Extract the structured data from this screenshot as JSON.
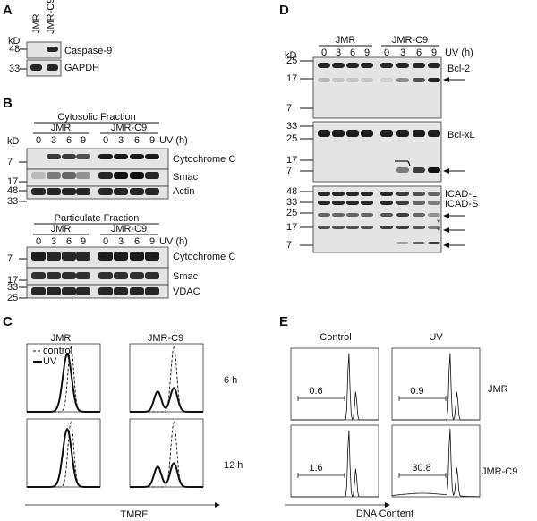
{
  "A": {
    "label": "A",
    "kd": "kD",
    "lanes": [
      "JMR",
      "JMR-C9"
    ],
    "markers": [
      "48",
      "33"
    ],
    "blots": [
      "Caspase-9",
      "GAPDH"
    ]
  },
  "B": {
    "label": "B",
    "cytosolic": {
      "title": "Cytosolic Fraction",
      "groups": [
        "JMR",
        "JMR-C9"
      ],
      "timepoints": [
        "0",
        "3",
        "6",
        "9"
      ],
      "unit": "UV (h)",
      "kd": "kD",
      "markers": [
        "7",
        "17",
        "48",
        "33"
      ],
      "blots": [
        "Cytochrome C",
        "Smac",
        "Actin"
      ]
    },
    "particulate": {
      "title": "Particulate Fraction",
      "groups": [
        "JMR",
        "JMR-C9"
      ],
      "timepoints": [
        "0",
        "3",
        "6",
        "9"
      ],
      "unit": "UV (h)",
      "markers": [
        "7",
        "17",
        "33",
        "25"
      ],
      "blots": [
        "Cytochrome C",
        "Smac",
        "VDAC"
      ]
    }
  },
  "C": {
    "label": "C",
    "columns": [
      "JMR",
      "JMR-C9"
    ],
    "rows": [
      "6 h",
      "12 h"
    ],
    "legend": [
      "control",
      "UV"
    ],
    "x_label": "TMRE"
  },
  "D": {
    "label": "D",
    "groups": [
      "JMR",
      "JMR-C9"
    ],
    "timepoints": [
      "0",
      "3",
      "6",
      "9"
    ],
    "unit": "UV (h)",
    "kd": "kD",
    "blots": [
      {
        "markers": [
          "25",
          "17",
          "7"
        ],
        "labels": [
          "Bcl-2"
        ]
      },
      {
        "markers": [
          "33",
          "25",
          "17",
          "7"
        ],
        "labels": [
          "Bcl-xL"
        ]
      },
      {
        "markers": [
          "48",
          "33",
          "25",
          "17",
          "7"
        ],
        "labels": [
          "ICAD-L",
          "ICAD-S"
        ]
      }
    ],
    "asterisks": [
      "*",
      "*"
    ]
  },
  "E": {
    "label": "E",
    "columns": [
      "Control",
      "UV"
    ],
    "rows": [
      "JMR",
      "JMR-C9"
    ],
    "percentages": [
      [
        0.6,
        0.9
      ],
      [
        1.6,
        30.8
      ]
    ],
    "x_label": "DNA Content"
  }
}
